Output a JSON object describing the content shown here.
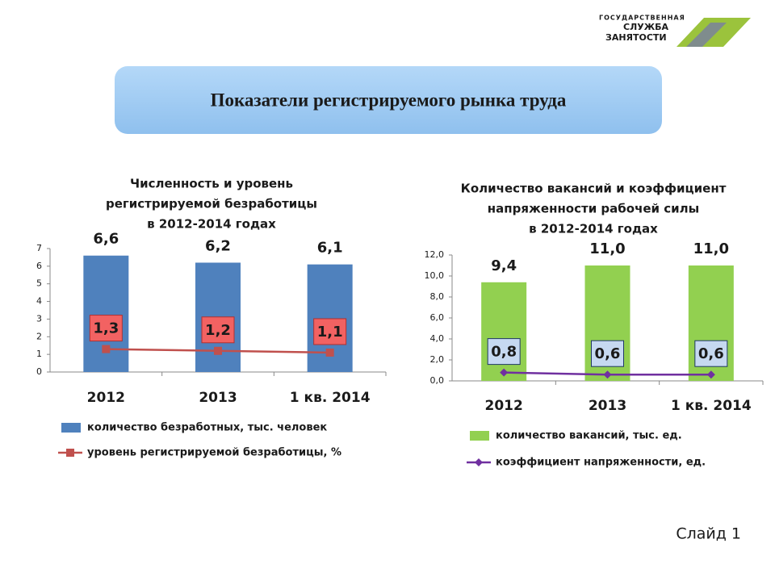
{
  "header": {
    "title": "Показатели регистрируемого рынка труда"
  },
  "logo": {
    "lines": [
      "ГОСУДАРСТВЕННАЯ",
      "СЛУЖБА",
      "ЗАНЯТОСТИ"
    ]
  },
  "footer": {
    "slide": "Слайд 1"
  },
  "chart_data": [
    {
      "type": "bar",
      "title": [
        "Численность и уровень",
        "регистрируемой безработицы",
        "в 2012-2014 годах"
      ],
      "categories": [
        "2012",
        "2013",
        "1 кв. 2014"
      ],
      "ylim": [
        0,
        7
      ],
      "yticks": [
        0,
        1,
        2,
        3,
        4,
        5,
        6,
        7
      ],
      "label_fill": "#f26262",
      "label_stroke": "#b03030",
      "marker": "square",
      "series": [
        {
          "name": "количество безработных, тыс. человек",
          "type": "bar",
          "color": "#4f81bd",
          "values": [
            6.6,
            6.2,
            6.1
          ],
          "value_labels": [
            "6,6",
            "6,2",
            "6,1"
          ]
        },
        {
          "name": "уровень регистрируемой безработицы, %",
          "type": "line",
          "color": "#c0504d",
          "values": [
            1.3,
            1.2,
            1.1
          ],
          "value_labels": [
            "1,3",
            "1,2",
            "1,1"
          ]
        }
      ]
    },
    {
      "type": "bar",
      "title": [
        "Количество вакансий и коэффициент",
        "напряженности рабочей силы",
        "в 2012-2014 годах"
      ],
      "categories": [
        "2012",
        "2013",
        "1 кв. 2014"
      ],
      "ylim": [
        0,
        12
      ],
      "yticks": [
        {
          "value": 0,
          "label": "0,0"
        },
        {
          "value": 2,
          "label": "2,0"
        },
        {
          "value": 4,
          "label": "4,0"
        },
        {
          "value": 6,
          "label": "6,0"
        },
        {
          "value": 8,
          "label": "8,0"
        },
        {
          "value": 10,
          "label": "10,0"
        },
        {
          "value": 12,
          "label": "12,0"
        }
      ],
      "label_fill": "#c6d9f1",
      "label_stroke": "#1f3864",
      "marker": "diamond",
      "series": [
        {
          "name": "количество вакансий, тыс. ед.",
          "type": "bar",
          "color": "#92d050",
          "values": [
            9.4,
            11.0,
            11.0
          ],
          "value_labels": [
            "9,4",
            "11,0",
            "11,0"
          ]
        },
        {
          "name": "коэффициент напряженности, ед.",
          "type": "line",
          "color": "#7030a0",
          "values": [
            0.8,
            0.6,
            0.6
          ],
          "value_labels": [
            "0,8",
            "0,6",
            "0,6"
          ]
        }
      ]
    }
  ]
}
